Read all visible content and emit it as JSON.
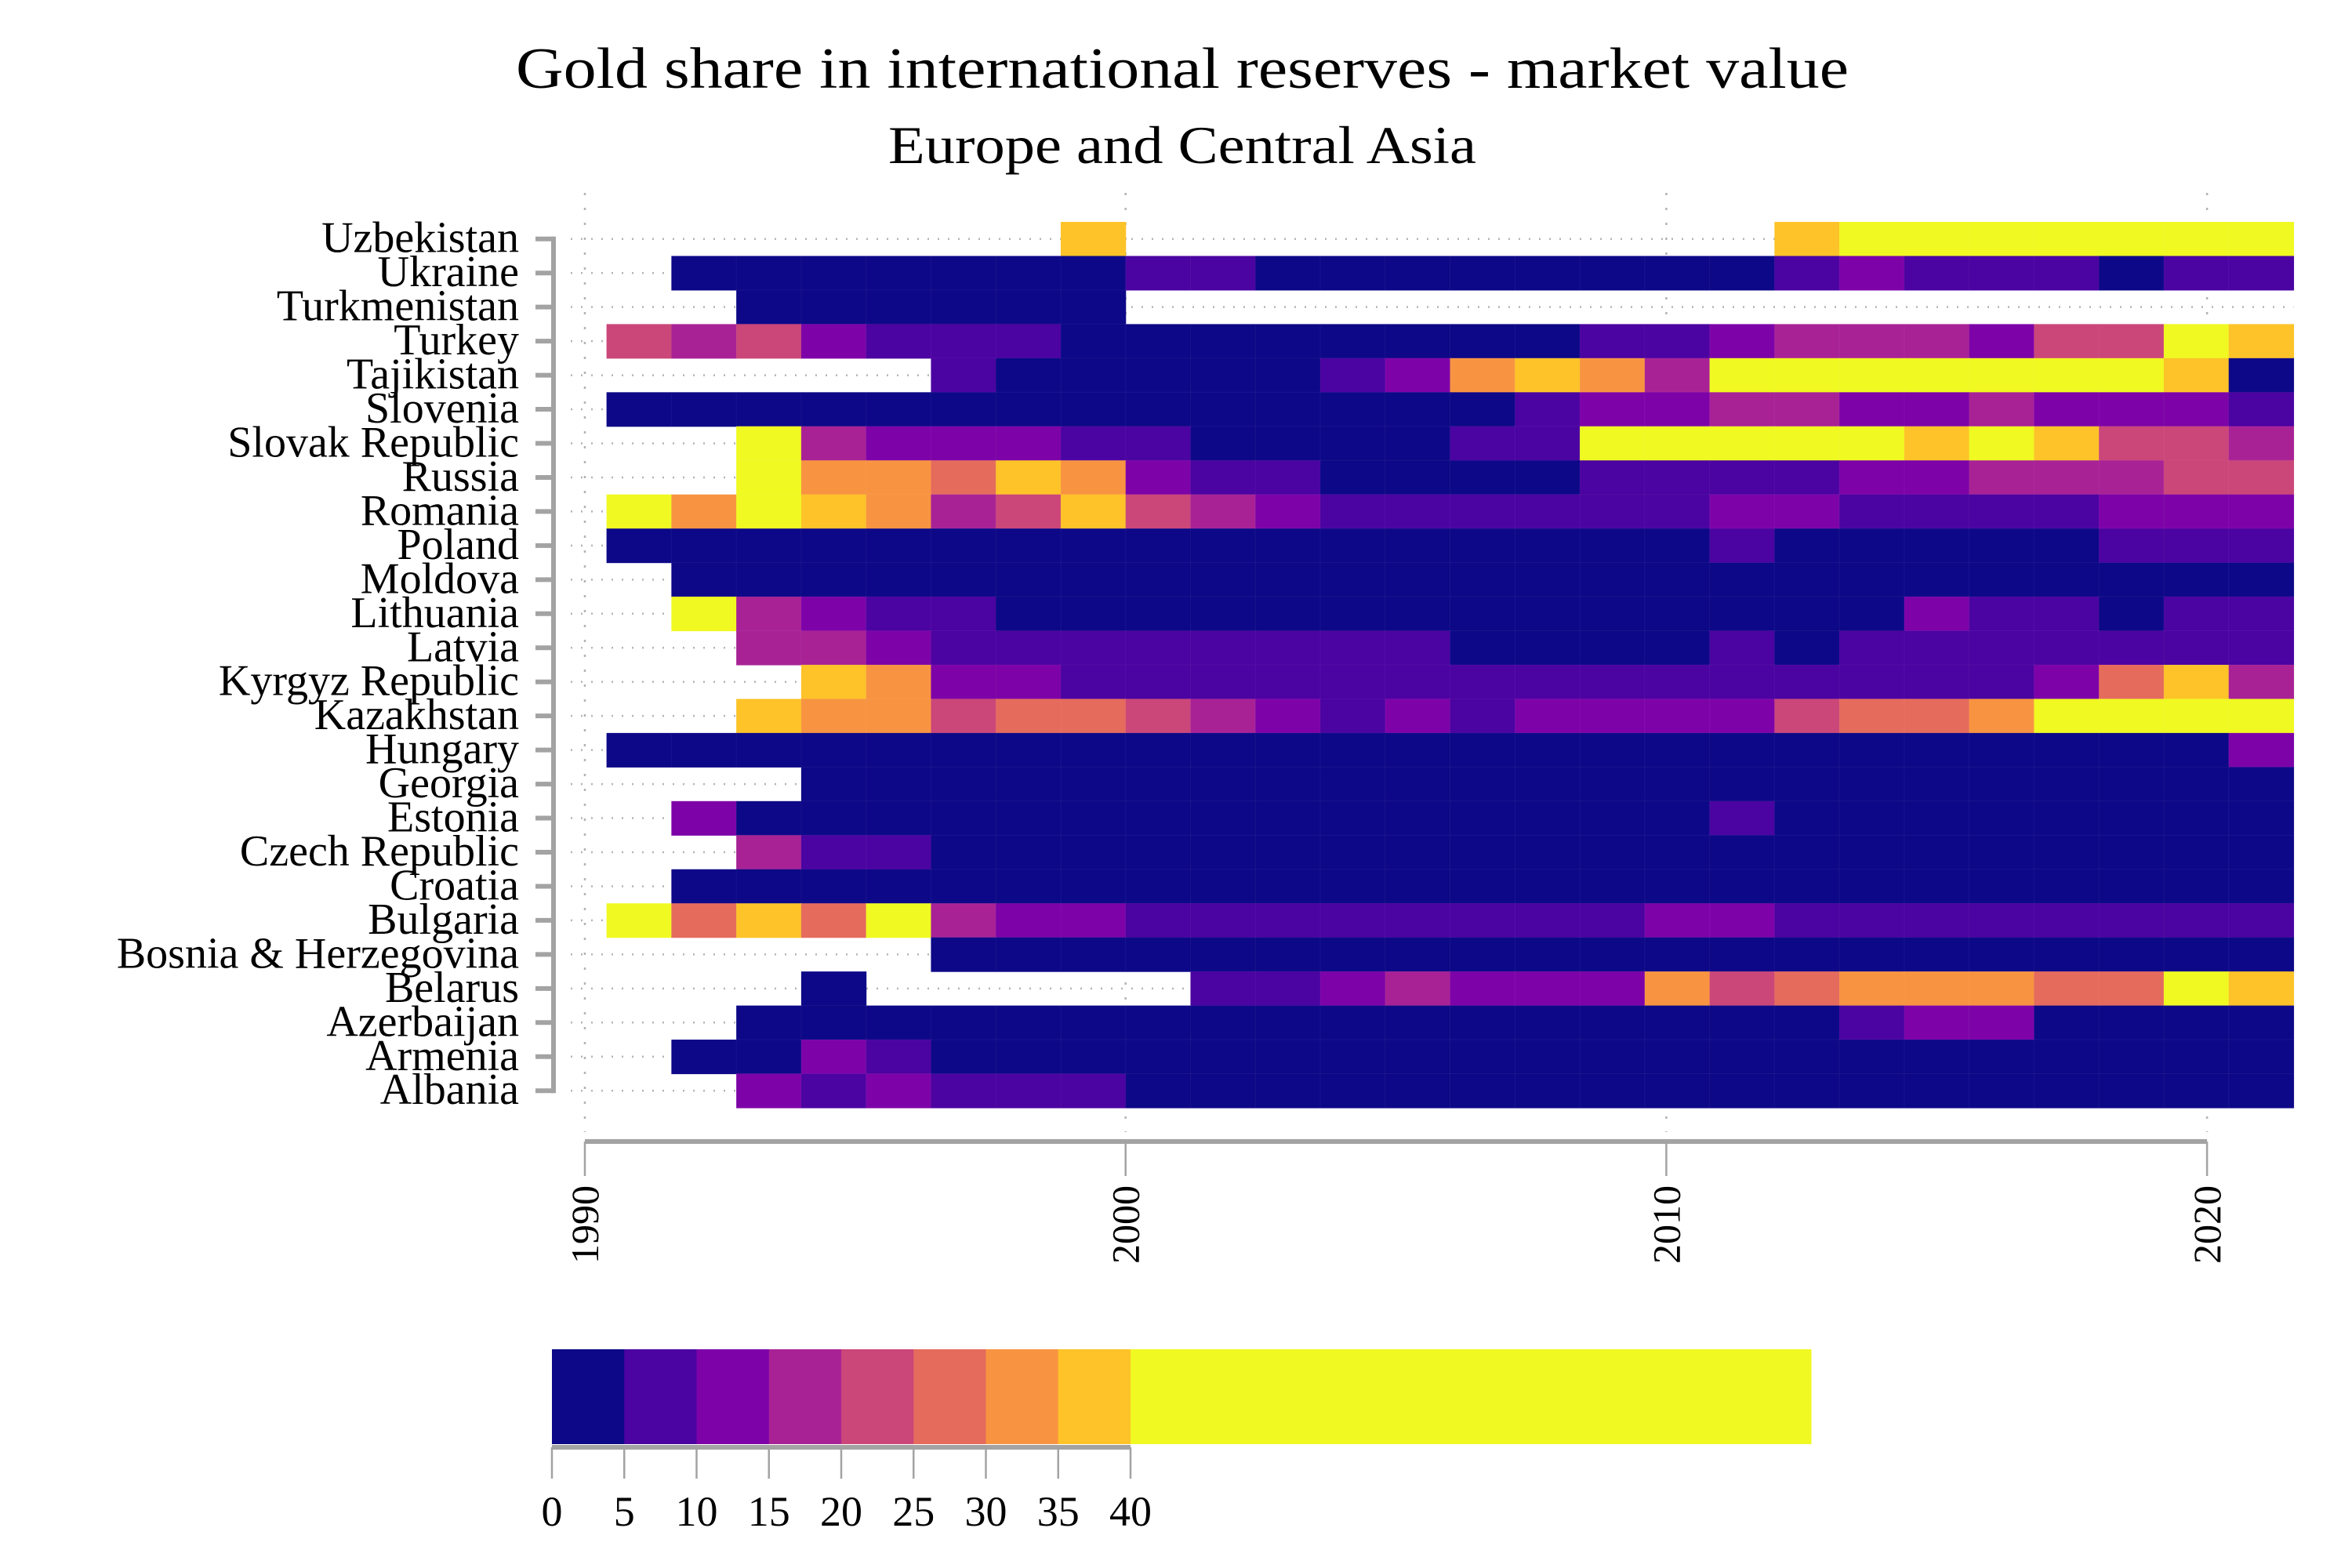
{
  "chart_data": {
    "type": "heatmap",
    "title": "Gold share in international reserves - market value",
    "subtitle": "Europe and Central Asia",
    "xlabel": "",
    "ylabel": "",
    "x_range": [
      1990,
      2021.6
    ],
    "x_ticks": [
      {
        "value": 1990,
        "label": "1990"
      },
      {
        "value": 2000,
        "label": "2000"
      },
      {
        "value": 2010,
        "label": "2010"
      },
      {
        "value": 2020,
        "label": "2020"
      }
    ],
    "column_step": 1.2,
    "columns": [
      1991,
      1992.2,
      1993.4,
      1994.6,
      1995.8,
      1997,
      1998.2,
      1999.4,
      2000.6,
      2001.8,
      2003,
      2004.2,
      2005.4,
      2006.6,
      2007.8,
      2009,
      2010.2,
      2011.4,
      2012.6,
      2013.8,
      2015,
      2016.2,
      2017.4,
      2018.6,
      2019.8,
      2021
    ],
    "grid": "dotted",
    "legend_position": "bottom",
    "rows": [
      {
        "name": "Uzbekistan",
        "values": [
          null,
          null,
          null,
          null,
          null,
          null,
          null,
          37.5,
          null,
          null,
          null,
          null,
          null,
          null,
          null,
          null,
          null,
          null,
          37.5,
          45,
          45,
          45,
          45,
          45,
          45,
          45
        ]
      },
      {
        "name": "Ukraine",
        "values": [
          null,
          2.5,
          2.5,
          2.5,
          2.5,
          2.5,
          2.5,
          2.5,
          7.5,
          7.5,
          2.5,
          2.5,
          2.5,
          2.5,
          2.5,
          2.5,
          2.5,
          2.5,
          7.5,
          12.5,
          7.5,
          7.5,
          7.5,
          2.5,
          7.5,
          7.5
        ]
      },
      {
        "name": "Turkmenistan",
        "values": [
          null,
          null,
          2.5,
          2.5,
          2.5,
          2.5,
          2.5,
          2.5,
          null,
          null,
          null,
          null,
          null,
          null,
          null,
          null,
          null,
          null,
          null,
          null,
          null,
          null,
          null,
          null,
          null,
          null
        ]
      },
      {
        "name": "Turkey",
        "values": [
          22.5,
          17.5,
          22.5,
          12.5,
          7.5,
          7.5,
          7.5,
          2.5,
          2.5,
          2.5,
          2.5,
          2.5,
          2.5,
          2.5,
          2.5,
          7.5,
          7.5,
          12.5,
          17.5,
          17.5,
          17.5,
          12.5,
          22.5,
          22.5,
          45,
          37.5
        ]
      },
      {
        "name": "Tajikistan",
        "values": [
          null,
          null,
          null,
          null,
          null,
          7.5,
          2.5,
          2.5,
          2.5,
          2.5,
          2.5,
          7.5,
          12.5,
          32.5,
          37.5,
          32.5,
          17.5,
          45,
          45,
          45,
          45,
          45,
          45,
          45,
          37.5,
          2.5
        ]
      },
      {
        "name": "Slovenia",
        "values": [
          2.5,
          2.5,
          2.5,
          2.5,
          2.5,
          2.5,
          2.5,
          2.5,
          2.5,
          2.5,
          2.5,
          2.5,
          2.5,
          2.5,
          7.5,
          12.5,
          12.5,
          17.5,
          17.5,
          12.5,
          12.5,
          17.5,
          12.5,
          12.5,
          12.5,
          7.5
        ]
      },
      {
        "name": "Slovak Republic",
        "values": [
          null,
          null,
          45,
          17.5,
          12.5,
          12.5,
          12.5,
          7.5,
          7.5,
          2.5,
          2.5,
          2.5,
          2.5,
          7.5,
          7.5,
          45,
          45,
          45,
          45,
          45,
          37.5,
          45,
          37.5,
          22.5,
          22.5,
          17.5
        ]
      },
      {
        "name": "Russia",
        "values": [
          null,
          null,
          45,
          32.5,
          32.5,
          27.5,
          37.5,
          32.5,
          12.5,
          7.5,
          7.5,
          2.5,
          2.5,
          2.5,
          2.5,
          7.5,
          7.5,
          7.5,
          7.5,
          12.5,
          12.5,
          17.5,
          17.5,
          17.5,
          22.5,
          22.5
        ]
      },
      {
        "name": "Romania",
        "values": [
          45,
          32.5,
          45,
          37.5,
          32.5,
          17.5,
          22.5,
          37.5,
          22.5,
          17.5,
          12.5,
          7.5,
          7.5,
          7.5,
          7.5,
          7.5,
          7.5,
          12.5,
          12.5,
          7.5,
          7.5,
          7.5,
          7.5,
          12.5,
          12.5,
          12.5
        ]
      },
      {
        "name": "Poland",
        "values": [
          2.5,
          2.5,
          2.5,
          2.5,
          2.5,
          2.5,
          2.5,
          2.5,
          2.5,
          2.5,
          2.5,
          2.5,
          2.5,
          2.5,
          2.5,
          2.5,
          2.5,
          7.5,
          2.5,
          2.5,
          2.5,
          2.5,
          2.5,
          7.5,
          7.5,
          7.5
        ]
      },
      {
        "name": "Moldova",
        "values": [
          null,
          2.5,
          2.5,
          2.5,
          2.5,
          2.5,
          2.5,
          2.5,
          2.5,
          2.5,
          2.5,
          2.5,
          2.5,
          2.5,
          2.5,
          2.5,
          2.5,
          2.5,
          2.5,
          2.5,
          2.5,
          2.5,
          2.5,
          2.5,
          2.5,
          2.5
        ]
      },
      {
        "name": "Lithuania",
        "values": [
          null,
          45,
          17.5,
          12.5,
          7.5,
          7.5,
          2.5,
          2.5,
          2.5,
          2.5,
          2.5,
          2.5,
          2.5,
          2.5,
          2.5,
          2.5,
          2.5,
          2.5,
          2.5,
          2.5,
          12.5,
          7.5,
          7.5,
          2.5,
          7.5,
          7.5
        ]
      },
      {
        "name": "Latvia",
        "values": [
          null,
          null,
          17.5,
          17.5,
          12.5,
          7.5,
          7.5,
          7.5,
          7.5,
          7.5,
          7.5,
          7.5,
          7.5,
          2.5,
          2.5,
          2.5,
          2.5,
          7.5,
          2.5,
          7.5,
          7.5,
          7.5,
          7.5,
          7.5,
          7.5,
          7.5
        ]
      },
      {
        "name": "Kyrgyz Republic",
        "values": [
          null,
          null,
          null,
          37.5,
          32.5,
          12.5,
          12.5,
          7.5,
          7.5,
          7.5,
          7.5,
          7.5,
          7.5,
          7.5,
          7.5,
          7.5,
          7.5,
          7.5,
          7.5,
          7.5,
          7.5,
          7.5,
          12.5,
          27.5,
          37.5,
          17.5
        ]
      },
      {
        "name": "Kazakhstan",
        "values": [
          null,
          null,
          37.5,
          32.5,
          32.5,
          22.5,
          27.5,
          27.5,
          22.5,
          17.5,
          12.5,
          7.5,
          12.5,
          7.5,
          12.5,
          12.5,
          12.5,
          12.5,
          22.5,
          27.5,
          27.5,
          32.5,
          45,
          45,
          45,
          45
        ]
      },
      {
        "name": "Hungary",
        "values": [
          2.5,
          2.5,
          2.5,
          2.5,
          2.5,
          2.5,
          2.5,
          2.5,
          2.5,
          2.5,
          2.5,
          2.5,
          2.5,
          2.5,
          2.5,
          2.5,
          2.5,
          2.5,
          2.5,
          2.5,
          2.5,
          2.5,
          2.5,
          2.5,
          2.5,
          12.5
        ]
      },
      {
        "name": "Georgia",
        "values": [
          null,
          null,
          null,
          2.5,
          2.5,
          2.5,
          2.5,
          2.5,
          2.5,
          2.5,
          2.5,
          2.5,
          2.5,
          2.5,
          2.5,
          2.5,
          2.5,
          2.5,
          2.5,
          2.5,
          2.5,
          2.5,
          2.5,
          2.5,
          2.5,
          2.5
        ]
      },
      {
        "name": "Estonia",
        "values": [
          null,
          12.5,
          2.5,
          2.5,
          2.5,
          2.5,
          2.5,
          2.5,
          2.5,
          2.5,
          2.5,
          2.5,
          2.5,
          2.5,
          2.5,
          2.5,
          2.5,
          7.5,
          2.5,
          2.5,
          2.5,
          2.5,
          2.5,
          2.5,
          2.5,
          2.5
        ]
      },
      {
        "name": "Czech Republic",
        "values": [
          null,
          null,
          17.5,
          7.5,
          7.5,
          2.5,
          2.5,
          2.5,
          2.5,
          2.5,
          2.5,
          2.5,
          2.5,
          2.5,
          2.5,
          2.5,
          2.5,
          2.5,
          2.5,
          2.5,
          2.5,
          2.5,
          2.5,
          2.5,
          2.5,
          2.5
        ]
      },
      {
        "name": "Croatia",
        "values": [
          null,
          2.5,
          2.5,
          2.5,
          2.5,
          2.5,
          2.5,
          2.5,
          2.5,
          2.5,
          2.5,
          2.5,
          2.5,
          2.5,
          2.5,
          2.5,
          2.5,
          2.5,
          2.5,
          2.5,
          2.5,
          2.5,
          2.5,
          2.5,
          2.5,
          2.5
        ]
      },
      {
        "name": "Bulgaria",
        "values": [
          45,
          27.5,
          37.5,
          27.5,
          45,
          17.5,
          12.5,
          12.5,
          7.5,
          7.5,
          7.5,
          7.5,
          7.5,
          7.5,
          7.5,
          7.5,
          12.5,
          12.5,
          7.5,
          7.5,
          7.5,
          7.5,
          7.5,
          7.5,
          7.5,
          7.5
        ]
      },
      {
        "name": "Bosnia & Herzegovina",
        "values": [
          null,
          null,
          null,
          null,
          null,
          2.5,
          2.5,
          2.5,
          2.5,
          2.5,
          2.5,
          2.5,
          2.5,
          2.5,
          2.5,
          2.5,
          2.5,
          2.5,
          2.5,
          2.5,
          2.5,
          2.5,
          2.5,
          2.5,
          2.5,
          2.5
        ]
      },
      {
        "name": "Belarus",
        "values": [
          null,
          null,
          null,
          2.5,
          null,
          null,
          null,
          null,
          null,
          7.5,
          7.5,
          12.5,
          17.5,
          12.5,
          12.5,
          12.5,
          32.5,
          22.5,
          27.5,
          32.5,
          32.5,
          32.5,
          27.5,
          27.5,
          45,
          37.5
        ]
      },
      {
        "name": "Azerbaijan",
        "values": [
          null,
          null,
          2.5,
          2.5,
          2.5,
          2.5,
          2.5,
          2.5,
          2.5,
          2.5,
          2.5,
          2.5,
          2.5,
          2.5,
          2.5,
          2.5,
          2.5,
          2.5,
          2.5,
          7.5,
          12.5,
          12.5,
          2.5,
          2.5,
          2.5,
          2.5
        ]
      },
      {
        "name": "Armenia",
        "values": [
          null,
          2.5,
          2.5,
          12.5,
          7.5,
          2.5,
          2.5,
          2.5,
          2.5,
          2.5,
          2.5,
          2.5,
          2.5,
          2.5,
          2.5,
          2.5,
          2.5,
          2.5,
          2.5,
          2.5,
          2.5,
          2.5,
          2.5,
          2.5,
          2.5,
          2.5
        ]
      },
      {
        "name": "Albania",
        "values": [
          null,
          null,
          12.5,
          7.5,
          12.5,
          7.5,
          7.5,
          7.5,
          2.5,
          2.5,
          2.5,
          2.5,
          2.5,
          2.5,
          2.5,
          2.5,
          2.5,
          2.5,
          2.5,
          2.5,
          2.5,
          2.5,
          2.5,
          2.5,
          2.5,
          2.5
        ]
      }
    ],
    "colorbar": {
      "ticks": [
        {
          "value": 0,
          "label": "0"
        },
        {
          "value": 5,
          "label": "5"
        },
        {
          "value": 10,
          "label": "10"
        },
        {
          "value": 15,
          "label": "15"
        },
        {
          "value": 20,
          "label": "20"
        },
        {
          "value": 25,
          "label": "25"
        },
        {
          "value": 30,
          "label": "30"
        },
        {
          "value": 35,
          "label": "35"
        },
        {
          "value": 40,
          "label": "40"
        }
      ],
      "bins": [
        {
          "min": 0,
          "max": 5,
          "color": "#0d0887"
        },
        {
          "min": 5,
          "max": 10,
          "color": "#4b03a1"
        },
        {
          "min": 10,
          "max": 15,
          "color": "#7d03a8"
        },
        {
          "min": 15,
          "max": 20,
          "color": "#a82296"
        },
        {
          "min": 20,
          "max": 25,
          "color": "#cb4679"
        },
        {
          "min": 25,
          "max": 30,
          "color": "#e56b5d"
        },
        {
          "min": 30,
          "max": 35,
          "color": "#f89441"
        },
        {
          "min": 35,
          "max": 40,
          "color": "#fdc328"
        },
        {
          "min": 40,
          "max": null,
          "color": "#f0f921"
        }
      ]
    }
  }
}
